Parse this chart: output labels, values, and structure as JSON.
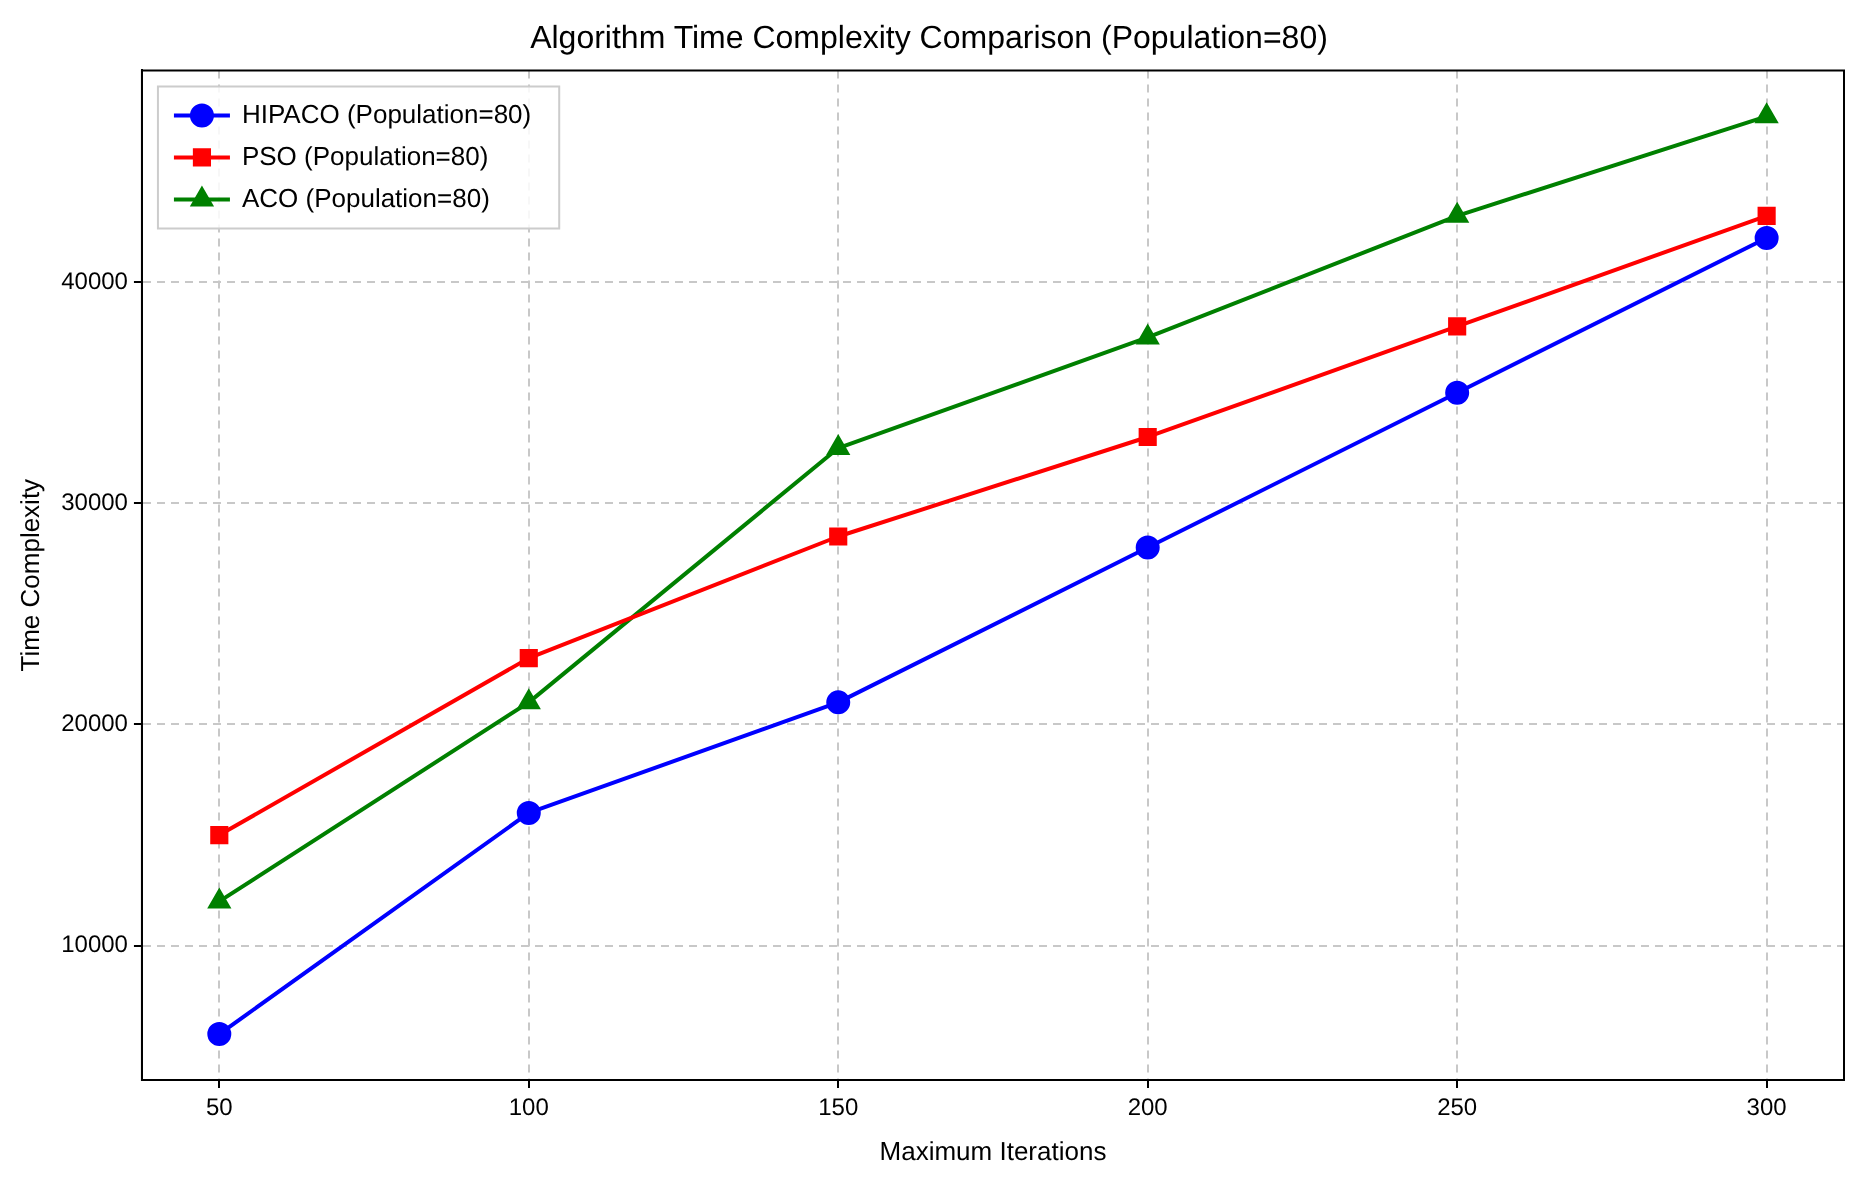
{
  "chart_data": {
    "type": "line",
    "title": "Algorithm Time Complexity Comparison (Population=80)",
    "xlabel": "Maximum Iterations",
    "ylabel": "Time Complexity",
    "x": [
      50,
      100,
      150,
      200,
      250,
      300
    ],
    "xlim": [
      37.5,
      312.5
    ],
    "xticks": [
      50,
      100,
      150,
      200,
      250,
      300
    ],
    "ylim": [
      3925,
      49575
    ],
    "yticks": [
      10000,
      20000,
      30000,
      40000
    ],
    "grid": true,
    "legend": "top left",
    "line_style": "solid",
    "series": [
      {
        "name": "HIPACO (Population=80)",
        "color": "#0000ff",
        "marker": "circle",
        "values": [
          6000,
          16000,
          21000,
          28000,
          35000,
          42000
        ]
      },
      {
        "name": "PSO (Population=80)",
        "color": "#ff0000",
        "marker": "square",
        "values": [
          15000,
          23000,
          28500,
          33000,
          38000,
          43000
        ]
      },
      {
        "name": "ACO (Population=80)",
        "color": "#008000",
        "marker": "triangle",
        "values": [
          12000,
          21000,
          32500,
          37500,
          43000,
          47500
        ]
      }
    ]
  }
}
